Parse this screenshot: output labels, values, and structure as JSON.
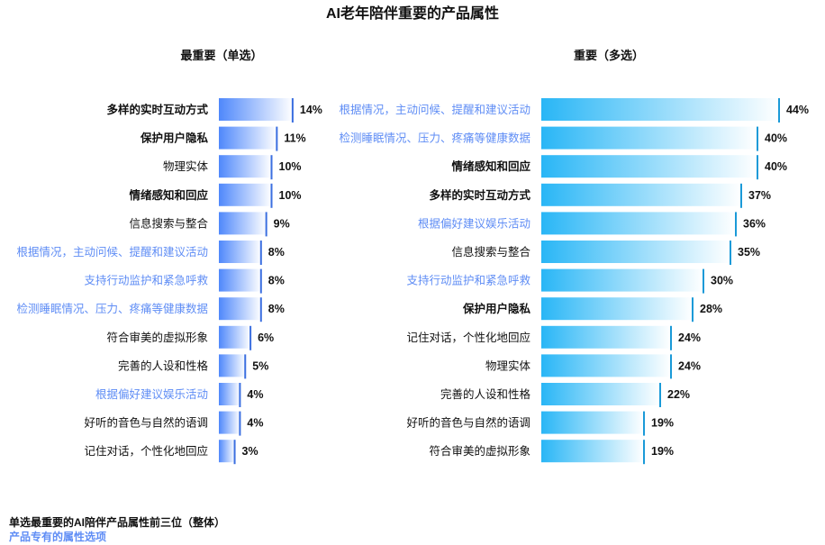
{
  "title": "AI老年陪伴重要的产品属性",
  "colors": {
    "left_bar_dark": "#4f88fb",
    "left_bar_light": "#ffffff",
    "right_bar_dark": "#29b6f6",
    "right_bar_light": "#ffffff",
    "highlight_text": "#5f8df5",
    "normal_text": "#111111",
    "edge_left": "#3b6fe0",
    "edge_right": "#1a9ad8"
  },
  "legend": {
    "line1": "单选最重要的AI陪伴产品属性前三位（整体）",
    "line2": "产品专有的属性选项"
  },
  "chart_data": [
    {
      "type": "bar",
      "orientation": "horizontal",
      "title": "最重要（单选）",
      "unit": "%",
      "xlim": [
        0,
        45
      ],
      "categories": [
        "多样的实时互动方式",
        "保护用户隐私",
        "物理实体",
        "情绪感知和回应",
        "信息搜索与整合",
        "根据情况，主动问候、提醒和建议活动",
        "支持行动监护和紧急呼救",
        "检测睡眠情况、压力、疼痛等健康数据",
        "符合审美的虚拟形象",
        "完善的人设和性格",
        "根据偏好建议娱乐活动",
        "好听的音色与自然的语调",
        "记住对话，个性化地回应"
      ],
      "values": [
        14,
        11,
        10,
        10,
        9,
        8,
        8,
        8,
        6,
        5,
        4,
        4,
        3
      ],
      "value_labels": [
        "14%",
        "11%",
        "10%",
        "10%",
        "9%",
        "8%",
        "8%",
        "8%",
        "6%",
        "5%",
        "4%",
        "4%",
        "3%"
      ],
      "bold": [
        true,
        true,
        false,
        true,
        false,
        false,
        false,
        false,
        false,
        false,
        false,
        false,
        false
      ],
      "highlight": [
        false,
        false,
        false,
        false,
        false,
        true,
        true,
        true,
        false,
        false,
        true,
        false,
        false
      ]
    },
    {
      "type": "bar",
      "orientation": "horizontal",
      "title": "重要（多选）",
      "unit": "%",
      "xlim": [
        0,
        44
      ],
      "categories": [
        "根据情况，主动问候、提醒和建议活动",
        "检测睡眠情况、压力、疼痛等健康数据",
        "情绪感知和回应",
        "多样的实时互动方式",
        "根据偏好建议娱乐活动",
        "信息搜索与整合",
        "支持行动监护和紧急呼救",
        "保护用户隐私",
        "记住对话，个性化地回应",
        "物理实体",
        "完善的人设和性格",
        "好听的音色与自然的语调",
        "符合审美的虚拟形象"
      ],
      "values": [
        44,
        40,
        40,
        37,
        36,
        35,
        30,
        28,
        24,
        24,
        22,
        19,
        19
      ],
      "value_labels": [
        "44%",
        "40%",
        "40%",
        "37%",
        "36%",
        "35%",
        "30%",
        "28%",
        "24%",
        "24%",
        "22%",
        "19%",
        "19%"
      ],
      "bold": [
        false,
        false,
        true,
        true,
        false,
        false,
        false,
        true,
        false,
        false,
        false,
        false,
        false
      ],
      "highlight": [
        true,
        true,
        false,
        false,
        true,
        false,
        true,
        false,
        false,
        false,
        false,
        false,
        false
      ]
    }
  ]
}
